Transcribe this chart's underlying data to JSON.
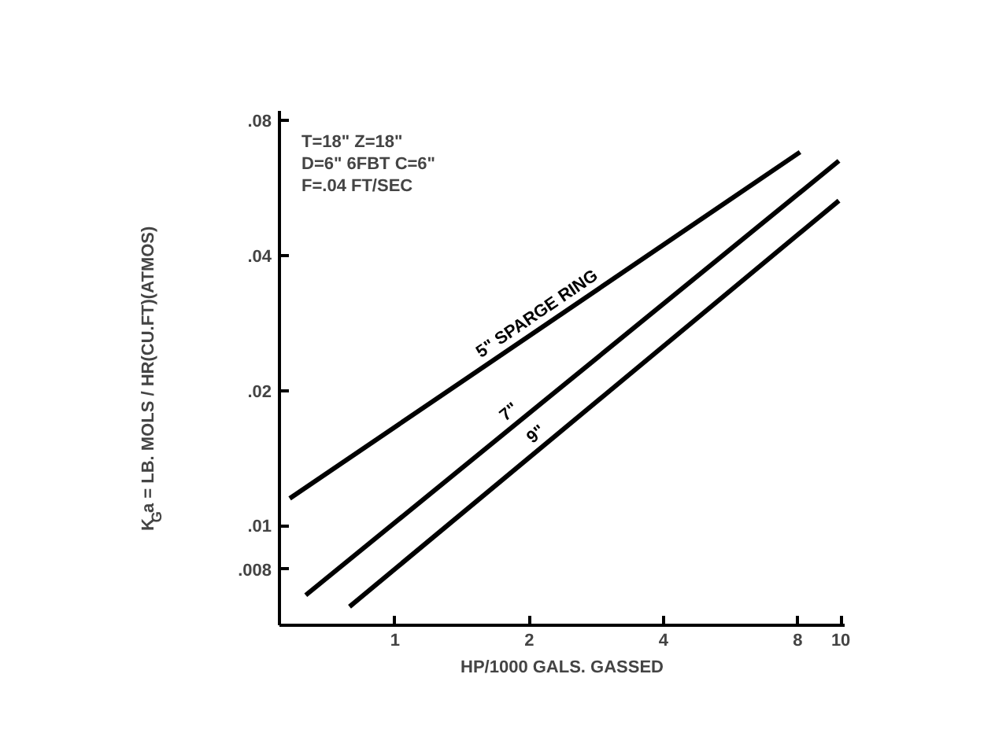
{
  "chart_data": {
    "type": "line",
    "xlabel": "HP/1000 GALS. GASSED",
    "ylabel": "K$_{G}$a = LB. MOLS / HR(CU.FT)(ATMOS)",
    "annotations": [
      "T=18\" Z=18\"",
      "D=6\" 6FBT  C=6\"",
      "F=.04 FT/SEC"
    ],
    "log": "xy",
    "xlim": [
      0.55,
      10.2
    ],
    "ylim": [
      0.006,
      0.084
    ],
    "xticks": [
      1,
      2,
      4,
      8,
      10
    ],
    "yticks": [
      {
        "value": 0.008,
        "label": ".008"
      },
      {
        "value": 0.01,
        "label": ".01"
      },
      {
        "value": 0.02,
        "label": ".02"
      },
      {
        "value": 0.04,
        "label": ".04"
      },
      {
        "value": 0.08,
        "label": ".08"
      }
    ],
    "grid": false,
    "series": [
      {
        "name": "5\" SPARGE RING",
        "color": "#000000",
        "x": [
          0.58,
          8.1
        ],
        "values": [
          0.0115,
          0.068
        ]
      },
      {
        "name": "7\"",
        "color": "#000000",
        "x": [
          0.63,
          9.9
        ],
        "values": [
          0.007,
          0.065
        ]
      },
      {
        "name": "9\"",
        "color": "#000000",
        "x": [
          0.79,
          9.9
        ],
        "values": [
          0.0066,
          0.053
        ]
      }
    ]
  }
}
